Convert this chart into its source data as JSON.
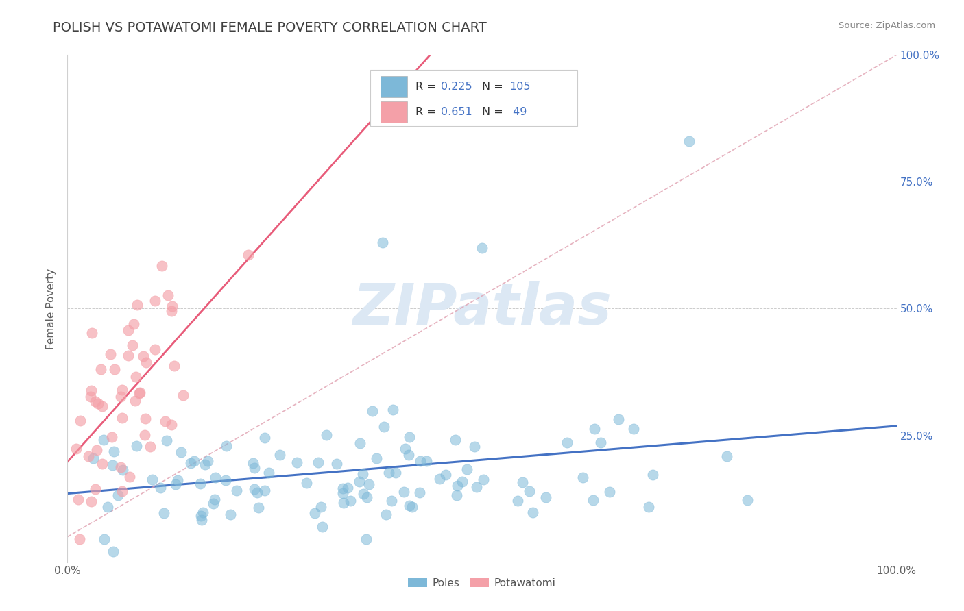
{
  "title": "POLISH VS POTAWATOMI FEMALE POVERTY CORRELATION CHART",
  "source": "Source: ZipAtlas.com",
  "ylabel": "Female Poverty",
  "xlim": [
    0.0,
    1.0
  ],
  "ylim": [
    0.0,
    1.0
  ],
  "poles_R": 0.225,
  "poles_N": 105,
  "potawatomi_R": 0.651,
  "potawatomi_N": 49,
  "poles_color": "#7db8d8",
  "potawatomi_color": "#f4a0a8",
  "trendline_poles_color": "#4472c4",
  "trendline_potawatomi_color": "#e85c7a",
  "trendline_dashed_color": "#e8a0b0",
  "legend_label_poles": "Poles",
  "legend_label_potawatomi": "Potawatomi",
  "watermark_color": "#dce8f4",
  "background_color": "#ffffff",
  "grid_color": "#cccccc",
  "title_color": "#404040",
  "title_fontsize": 14,
  "axis_label_color": "#606060",
  "right_tick_color": "#4472c4",
  "legend_R_N_color": "#4472c4"
}
